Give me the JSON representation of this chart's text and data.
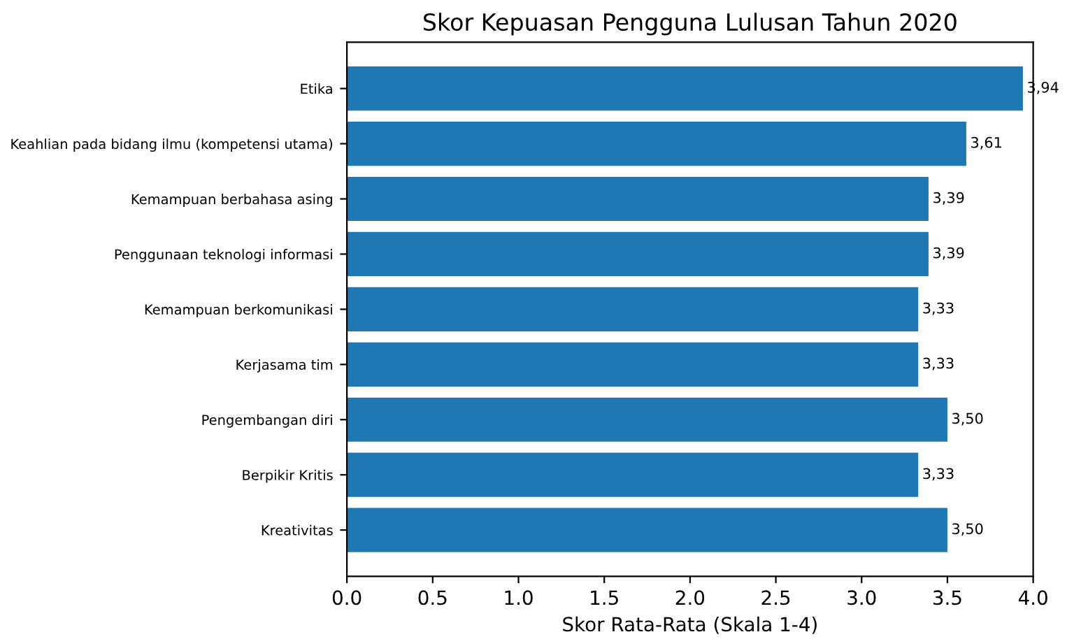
{
  "chart_data": {
    "type": "bar",
    "orientation": "horizontal",
    "title": "Skor Kepuasan Pengguna Lulusan Tahun 2020",
    "xlabel": "Skor Rata-Rata (Skala 1-4)",
    "categories": [
      "Etika",
      "Keahlian pada bidang ilmu (kompetensi utama)",
      "Kemampuan berbahasa asing",
      "Penggunaan teknologi informasi",
      "Kemampuan berkomunikasi",
      "Kerjasama tim",
      "Pengembangan diri",
      "Berpikir Kritis",
      "Kreativitas"
    ],
    "values": [
      3.94,
      3.61,
      3.39,
      3.39,
      3.33,
      3.33,
      3.5,
      3.33,
      3.5
    ],
    "value_labels": [
      "3,94",
      "3,61",
      "3,39",
      "3,39",
      "3,33",
      "3,33",
      "3,50",
      "3,33",
      "3,50"
    ],
    "color": "#1f77b4",
    "xlim": [
      0,
      4
    ],
    "xticks": [
      {
        "value": 0,
        "label": "0.0"
      },
      {
        "value": 0.5,
        "label": "0.5"
      },
      {
        "value": 1,
        "label": "1.0"
      },
      {
        "value": 1.5,
        "label": "1.5"
      },
      {
        "value": 2,
        "label": "2.0"
      },
      {
        "value": 2.5,
        "label": "2.5"
      },
      {
        "value": 3,
        "label": "3.0"
      },
      {
        "value": 3.5,
        "label": "3.5"
      },
      {
        "value": 4,
        "label": "4.0"
      }
    ],
    "grid": false
  }
}
